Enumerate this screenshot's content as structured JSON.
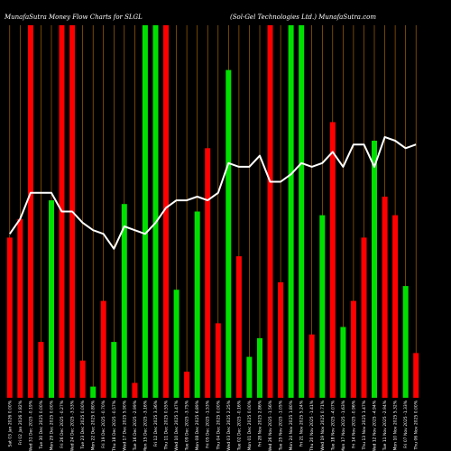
{
  "header": {
    "left": "MunafaSutra  Money Flow  Charts for SLGL",
    "right": "(Sol-Gel Technologies Ltd.)  MunafaSutra.com"
  },
  "chart_data": {
    "type": "bar",
    "title": "MunafaSutra  Money Flow  Charts for SLGL",
    "subtitle": "(Sol-Gel Technologies Ltd.)  MunafaSutra.com",
    "bars_scale": [
      0,
      100
    ],
    "bars": [
      {
        "label": "Sat 03 Jan 2026 0.00%",
        "color": "red",
        "value": 43
      },
      {
        "label": "Fri 02 Jan 2026 3.82%",
        "color": "red",
        "value": 48
      },
      {
        "label": "Wed 31 Dec 2025 -0.19%",
        "color": "red",
        "value": 100
      },
      {
        "label": "Tue 30 Dec 2025 0.00%",
        "color": "red",
        "value": 15
      },
      {
        "label": "Mon 29 Dec 2025 0.00%",
        "color": "green",
        "value": 53
      },
      {
        "label": "Fri 26 Dec 2025 -0.27%",
        "color": "red",
        "value": 100
      },
      {
        "label": "Wed 24 Dec 2025 -3.53%",
        "color": "red",
        "value": 100
      },
      {
        "label": "Tue 23 Dec 2025 0.00%",
        "color": "red",
        "value": 10
      },
      {
        "label": "Mon 22 Dec 2025 0.80%",
        "color": "green",
        "value": 3
      },
      {
        "label": "Fri 19 Dec 2025 -0.70%",
        "color": "red",
        "value": 26
      },
      {
        "label": "Thu 18 Dec 2025 -0.57%",
        "color": "green",
        "value": 15
      },
      {
        "label": "Wed 17 Dec 2025 5.90%",
        "color": "green",
        "value": 52
      },
      {
        "label": "Tue 16 Dec 2025 -2.99%",
        "color": "red",
        "value": 4
      },
      {
        "label": "Mon 15 Dec 2025 -3.16%",
        "color": "green",
        "value": 100
      },
      {
        "label": "Fri 12 Dec 2025 3.36%",
        "color": "green",
        "value": 100
      },
      {
        "label": "Thu 11 Dec 2025 0.55%",
        "color": "red",
        "value": 100
      },
      {
        "label": "Wed 10 Dec 2025 1.47%",
        "color": "green",
        "value": 29
      },
      {
        "label": "Tue 09 Dec 2025 -3.75%",
        "color": "red",
        "value": 7
      },
      {
        "label": "Mon 08 Dec 2025 6.89%",
        "color": "green",
        "value": 50
      },
      {
        "label": "Fri 05 Dec 2025 -1.53%",
        "color": "red",
        "value": 67
      },
      {
        "label": "Thu 04 Dec 2025 0.00%",
        "color": "red",
        "value": 20
      },
      {
        "label": "Wed 03 Dec 2025 2.25%",
        "color": "green",
        "value": 88
      },
      {
        "label": "Tue 02 Dec 2025 -0.16%",
        "color": "red",
        "value": 38
      },
      {
        "label": "Mon 01 Dec 2025 0.00%",
        "color": "green",
        "value": 11
      },
      {
        "label": "Fri 28 Nov 2025 2.86%",
        "color": "green",
        "value": 16
      },
      {
        "label": "Wed 26 Nov 2025 -1.56%",
        "color": "red",
        "value": 100
      },
      {
        "label": "Tue 25 Nov 2025 -1.05%",
        "color": "red",
        "value": 31
      },
      {
        "label": "Mon 24 Nov 2025 1.80%",
        "color": "green",
        "value": 100
      },
      {
        "label": "Fri 21 Nov 2025 5.24%",
        "color": "green",
        "value": 100
      },
      {
        "label": "Thu 20 Nov 2025 -1.41%",
        "color": "red",
        "value": 17
      },
      {
        "label": "Wed 19 Nov 2025 0.71%",
        "color": "green",
        "value": 49
      },
      {
        "label": "Tue 18 Nov 2025 -4.07%",
        "color": "red",
        "value": 74
      },
      {
        "label": "Mon 17 Nov 2025 -1.63%",
        "color": "green",
        "value": 19
      },
      {
        "label": "Fri 14 Nov 2025 -0.96%",
        "color": "red",
        "value": 26
      },
      {
        "label": "Thu 13 Nov 2025 1.47%",
        "color": "red",
        "value": 43
      },
      {
        "label": "Wed 12 Nov 2025 -4.94%",
        "color": "green",
        "value": 69
      },
      {
        "label": "Tue 11 Nov 2025 -2.94%",
        "color": "red",
        "value": 54
      },
      {
        "label": "Mon 10 Nov 2025 5.32%",
        "color": "red",
        "value": 49
      },
      {
        "label": "Fri 07 Nov 2025 -1.33%",
        "color": "green",
        "value": 30
      },
      {
        "label": "Thu 06 Nov 2025 0.00%",
        "color": "red",
        "value": 12
      }
    ],
    "price_line_scale": [
      0,
      100
    ],
    "price_line": [
      44,
      48,
      55,
      55,
      55,
      50,
      50,
      47,
      45,
      44,
      40,
      46,
      45,
      44,
      47,
      51,
      53,
      53,
      54,
      53,
      55,
      63,
      62,
      62,
      65,
      58,
      58,
      60,
      63,
      62,
      63,
      66,
      62,
      68,
      68,
      62,
      70,
      69,
      67,
      68
    ],
    "colors": {
      "background": "#000000",
      "positive": "#00e000",
      "negative": "#ff0000",
      "line": "#ffffff",
      "gridline": "#ff9900",
      "text": "#ffffff"
    },
    "grid": true,
    "legend": "none"
  }
}
